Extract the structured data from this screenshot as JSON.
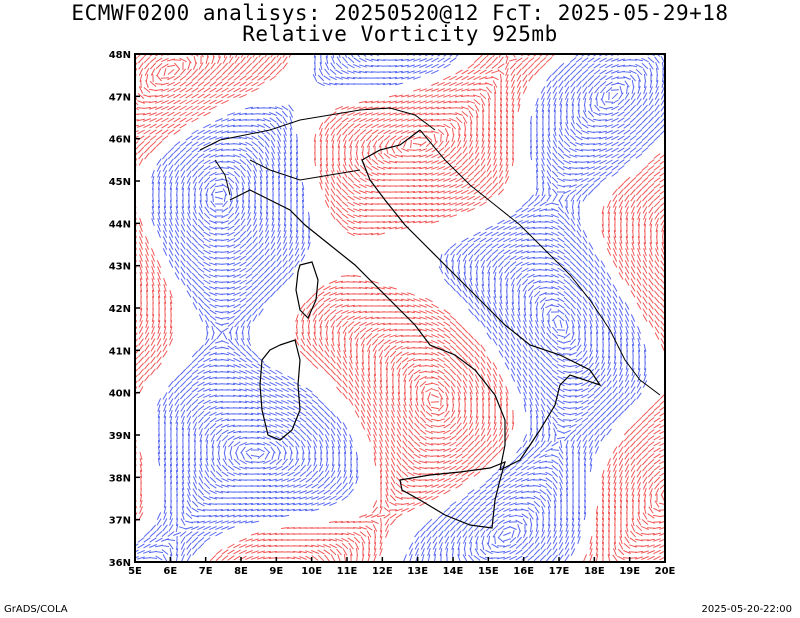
{
  "header": {
    "line1": "ECMWF0200 analisys: 20250520@12 FcT: 2025-05-29+18",
    "line2": "Relative Vorticity 925mb"
  },
  "map": {
    "projection": "lat-lon",
    "lon_range": [
      5,
      20
    ],
    "lat_range": [
      36,
      48
    ],
    "lon_ticks": [
      "5E",
      "6E",
      "7E",
      "8E",
      "9E",
      "10E",
      "11E",
      "12E",
      "13E",
      "14E",
      "15E",
      "16E",
      "17E",
      "18E",
      "19E",
      "20E"
    ],
    "lat_ticks": [
      "36N",
      "37N",
      "38N",
      "39N",
      "40N",
      "41N",
      "42N",
      "43N",
      "44N",
      "45N",
      "46N",
      "47N",
      "48N"
    ],
    "colors": {
      "positive_contours": "#f03a3a",
      "negative_contours": "#3a4ef0",
      "coastline": "#000000"
    }
  },
  "footer": {
    "left": "GrADS/COLA",
    "right": "2025-05-20-22:00"
  }
}
